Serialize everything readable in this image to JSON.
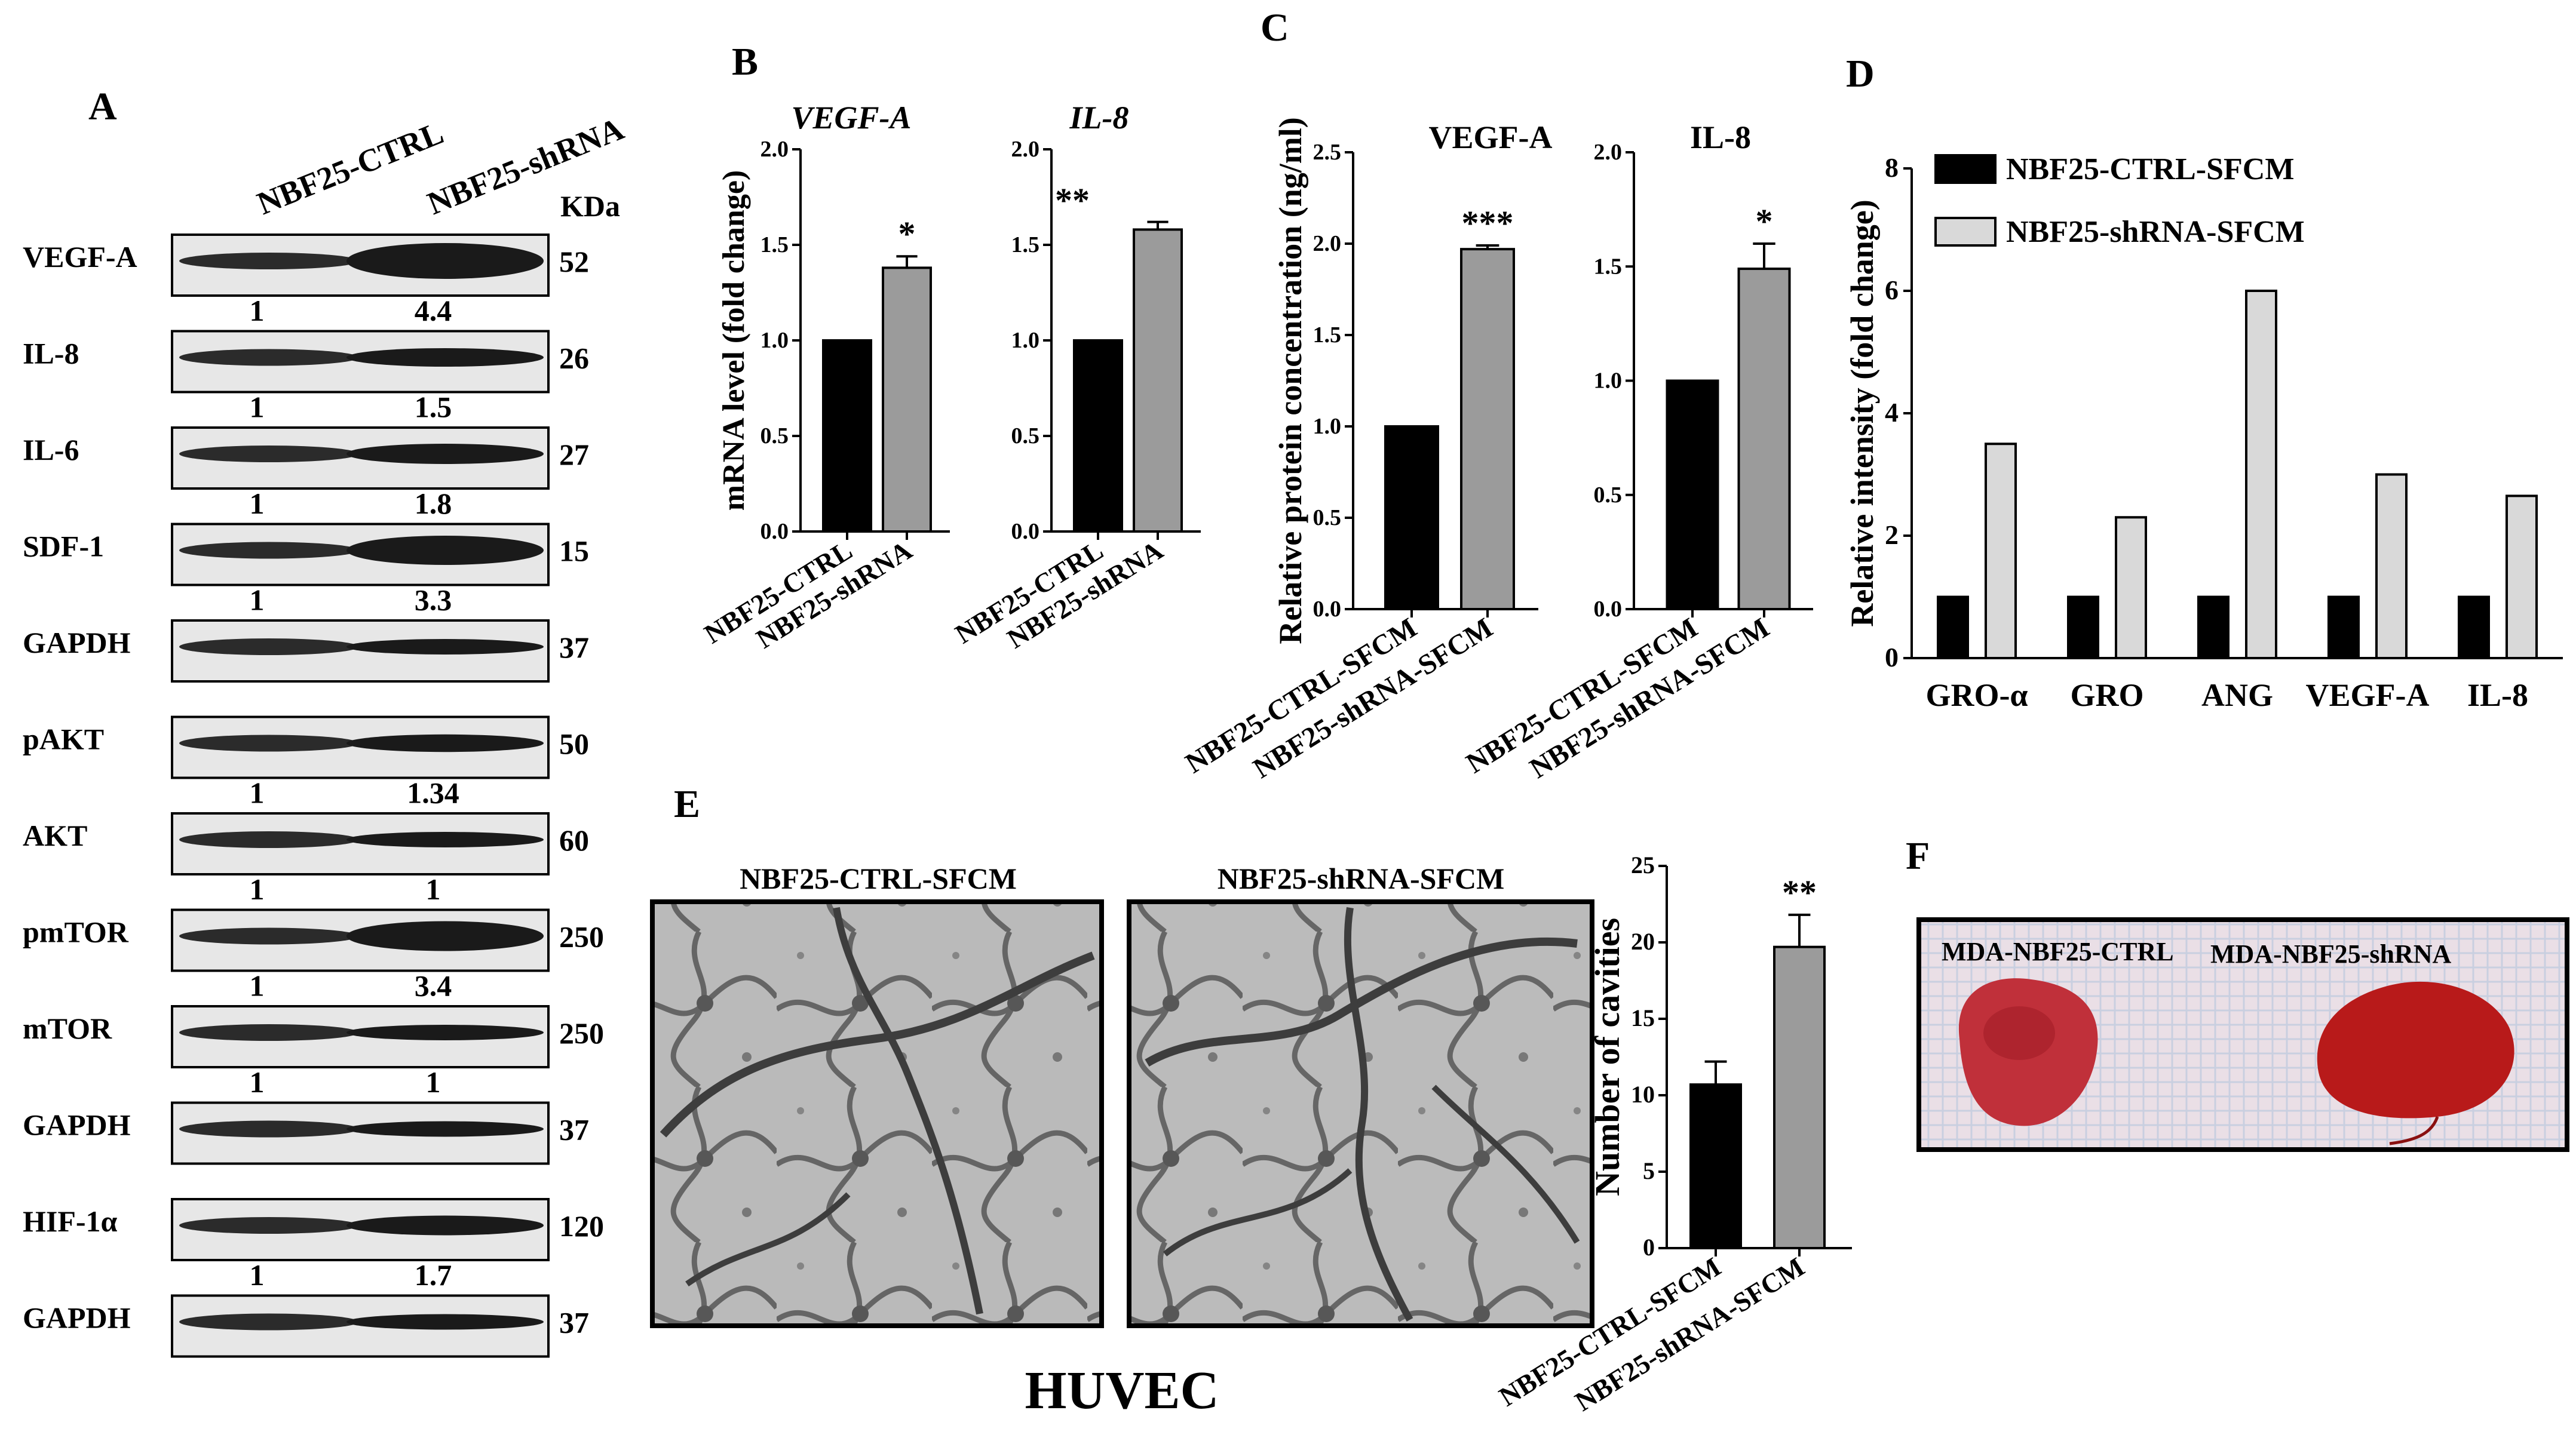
{
  "panel_labels": {
    "a": "A",
    "b": "B",
    "c": "C",
    "d": "D",
    "e": "E",
    "f": "F"
  },
  "western": {
    "col_labels": [
      "NBF25-CTRL",
      "NBF25-shRNA"
    ],
    "kda_header": "KDa",
    "rows": [
      {
        "label": "VEGF-A",
        "kda": "52",
        "q1": "1",
        "q2": "4.4"
      },
      {
        "label": "IL-8",
        "kda": "26",
        "q1": "1",
        "q2": "1.5"
      },
      {
        "label": "IL-6",
        "kda": "27",
        "q1": "1",
        "q2": "1.8"
      },
      {
        "label": "SDF-1",
        "kda": "15",
        "q1": "1",
        "q2": "3.3"
      },
      {
        "label": "GAPDH",
        "kda": "37",
        "q1": "",
        "q2": ""
      },
      {
        "label": "pAKT",
        "kda": "50",
        "q1": "1",
        "q2": "1.34"
      },
      {
        "label": "AKT",
        "kda": "60",
        "q1": "1",
        "q2": "1"
      },
      {
        "label": "pmTOR",
        "kda": "250",
        "q1": "1",
        "q2": "3.4"
      },
      {
        "label": "mTOR",
        "kda": "250",
        "q1": "1",
        "q2": "1"
      },
      {
        "label": "GAPDH",
        "kda": "37",
        "q1": "",
        "q2": ""
      },
      {
        "label": "HIF-1α",
        "kda": "120",
        "q1": "1",
        "q2": "1.7"
      },
      {
        "label": "GAPDH",
        "kda": "37",
        "q1": "",
        "q2": ""
      }
    ]
  },
  "chart_data": [
    {
      "id": "B-VEGF-A",
      "type": "bar",
      "title": "VEGF-A",
      "ylabel": "mRNA level (fold change)",
      "categories": [
        "NBF25-CTRL",
        "NBF25-shRNA"
      ],
      "values": [
        1.0,
        1.38
      ],
      "errors": [
        0,
        0.06
      ],
      "ylim": [
        0,
        2.0
      ],
      "yticks": [
        "0.0",
        "0.5",
        "1.0",
        "1.5",
        "2.0"
      ],
      "significance": "*",
      "colors": [
        "#000000",
        "#9b9b9b"
      ]
    },
    {
      "id": "B-IL-8",
      "type": "bar",
      "title": "IL-8",
      "ylabel": "",
      "categories": [
        "NBF25-CTRL",
        "NBF25-shRNA"
      ],
      "values": [
        1.0,
        1.58
      ],
      "errors": [
        0,
        0.04
      ],
      "ylim": [
        0,
        2.0
      ],
      "yticks": [
        "0.0",
        "0.5",
        "1.0",
        "1.5",
        "2.0"
      ],
      "significance": "**",
      "colors": [
        "#000000",
        "#9b9b9b"
      ]
    },
    {
      "id": "C-VEGF-A",
      "type": "bar",
      "title": "VEGF-A",
      "ylabel": "Relative protein concentration (ng/ml)",
      "categories": [
        "NBF25-CTRL-SFCM",
        "NBF25-shRNA-SFCM"
      ],
      "values": [
        1.0,
        1.97
      ],
      "errors": [
        0,
        0.02
      ],
      "ylim": [
        0,
        2.5
      ],
      "yticks": [
        "0.0",
        "0.5",
        "1.0",
        "1.5",
        "2.0",
        "2.5"
      ],
      "significance": "***",
      "colors": [
        "#000000",
        "#9b9b9b"
      ]
    },
    {
      "id": "C-IL-8",
      "type": "bar",
      "title": "IL-8",
      "ylabel": "",
      "categories": [
        "NBF25-CTRL-SFCM",
        "NBF25-shRNA-SFCM"
      ],
      "values": [
        1.0,
        1.49
      ],
      "errors": [
        0,
        0.11
      ],
      "ylim": [
        0,
        2.0
      ],
      "yticks": [
        "0.0",
        "0.5",
        "1.0",
        "1.5",
        "2.0"
      ],
      "significance": "*",
      "colors": [
        "#000000",
        "#9b9b9b"
      ]
    },
    {
      "id": "D",
      "type": "bar",
      "ylabel": "Relative intensity (fold change)",
      "categories": [
        "GRO-α",
        "GRO",
        "ANG",
        "VEGF-A",
        "IL-8"
      ],
      "series": [
        {
          "name": "NBF25-CTRL-SFCM",
          "values": [
            1,
            1,
            1,
            1,
            1
          ],
          "color": "#000000"
        },
        {
          "name": "NBF25-shRNA-SFCM",
          "values": [
            3.5,
            2.3,
            6.0,
            3.0,
            2.65
          ],
          "color": "#d9d9d9"
        }
      ],
      "ylim": [
        0,
        8
      ],
      "yticks": [
        "0",
        "2",
        "4",
        "6",
        "8"
      ],
      "legend": "top-left"
    },
    {
      "id": "E",
      "type": "bar",
      "ylabel": "Number of cavities",
      "categories": [
        "NBF25-CTRL-SFCM",
        "NBF25-shRNA-SFCM"
      ],
      "values": [
        10.7,
        19.7
      ],
      "errors": [
        1.5,
        2.1
      ],
      "ylim": [
        0,
        25
      ],
      "yticks": [
        "0",
        "5",
        "10",
        "15",
        "20",
        "25"
      ],
      "significance": "**",
      "colors": [
        "#000000",
        "#9b9b9b"
      ]
    }
  ],
  "panel_e": {
    "left_title": "NBF25-CTRL-SFCM",
    "right_title": "NBF25-shRNA-SFCM",
    "caption": "HUVEC"
  },
  "panel_f": {
    "left_label": "MDA-NBF25-CTRL",
    "right_label": "MDA-NBF25-shRNA"
  }
}
